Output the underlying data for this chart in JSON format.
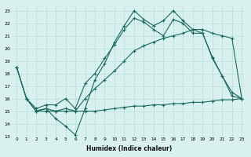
{
  "xlabel": "Humidex (Indice chaleur)",
  "xlim": [
    -0.5,
    23.5
  ],
  "ylim": [
    13,
    23.5
  ],
  "yticks": [
    13,
    14,
    15,
    16,
    17,
    18,
    19,
    20,
    21,
    22,
    23
  ],
  "xticks": [
    0,
    1,
    2,
    3,
    4,
    5,
    6,
    7,
    8,
    9,
    10,
    11,
    12,
    13,
    14,
    15,
    16,
    17,
    18,
    19,
    20,
    21,
    22,
    23
  ],
  "line_color": "#1a6b5e",
  "bg_color": "#d8f0ee",
  "grid_color": "#b8dcd8",
  "series": {
    "s1_jagged": {
      "x": [
        0,
        1,
        2,
        3,
        4,
        5,
        6,
        7,
        8,
        9,
        10,
        11,
        12,
        13,
        14,
        15,
        16,
        17,
        18,
        19,
        20,
        21,
        22,
        23
      ],
      "y": [
        18.5,
        16.0,
        15.0,
        15.2,
        14.4,
        13.8,
        13.1,
        15.2,
        17.5,
        18.8,
        20.5,
        21.8,
        23.0,
        22.3,
        21.8,
        22.2,
        23.0,
        22.2,
        21.5,
        21.2,
        19.3,
        17.8,
        16.5,
        16.0
      ]
    },
    "s2_flat": {
      "x": [
        1,
        2,
        3,
        4,
        5,
        6,
        7,
        8,
        9,
        10,
        11,
        12,
        13,
        14,
        15,
        16,
        17,
        18,
        19,
        20,
        21,
        22,
        23
      ],
      "y": [
        16.0,
        15.0,
        15.0,
        15.0,
        15.0,
        15.0,
        15.0,
        15.0,
        15.1,
        15.2,
        15.3,
        15.4,
        15.4,
        15.5,
        15.5,
        15.6,
        15.6,
        15.7,
        15.7,
        15.8,
        15.9,
        15.9,
        16.0
      ]
    },
    "s3_rise": {
      "x": [
        0,
        1,
        2,
        3,
        4,
        5,
        6,
        7,
        8,
        9,
        10,
        11,
        12,
        13,
        14,
        15,
        16,
        17,
        18,
        19,
        20,
        21,
        22,
        23
      ],
      "y": [
        18.5,
        16.0,
        15.2,
        15.5,
        15.5,
        16.0,
        15.2,
        17.2,
        18.0,
        19.2,
        20.3,
        21.5,
        22.4,
        22.1,
        21.5,
        21.0,
        22.3,
        22.0,
        21.2,
        21.2,
        19.2,
        17.8,
        16.2,
        16.0
      ]
    },
    "s4_diag": {
      "x": [
        0,
        1,
        2,
        3,
        4,
        5,
        6,
        7,
        8,
        9,
        10,
        11,
        12,
        13,
        14,
        15,
        16,
        17,
        18,
        19,
        20,
        21,
        22,
        23
      ],
      "y": [
        18.5,
        16.0,
        15.0,
        15.2,
        15.0,
        15.2,
        15.0,
        16.0,
        16.8,
        17.5,
        18.2,
        19.0,
        19.8,
        20.2,
        20.5,
        20.8,
        21.0,
        21.2,
        21.5,
        21.5,
        21.2,
        21.0,
        20.8,
        16.0
      ]
    }
  }
}
